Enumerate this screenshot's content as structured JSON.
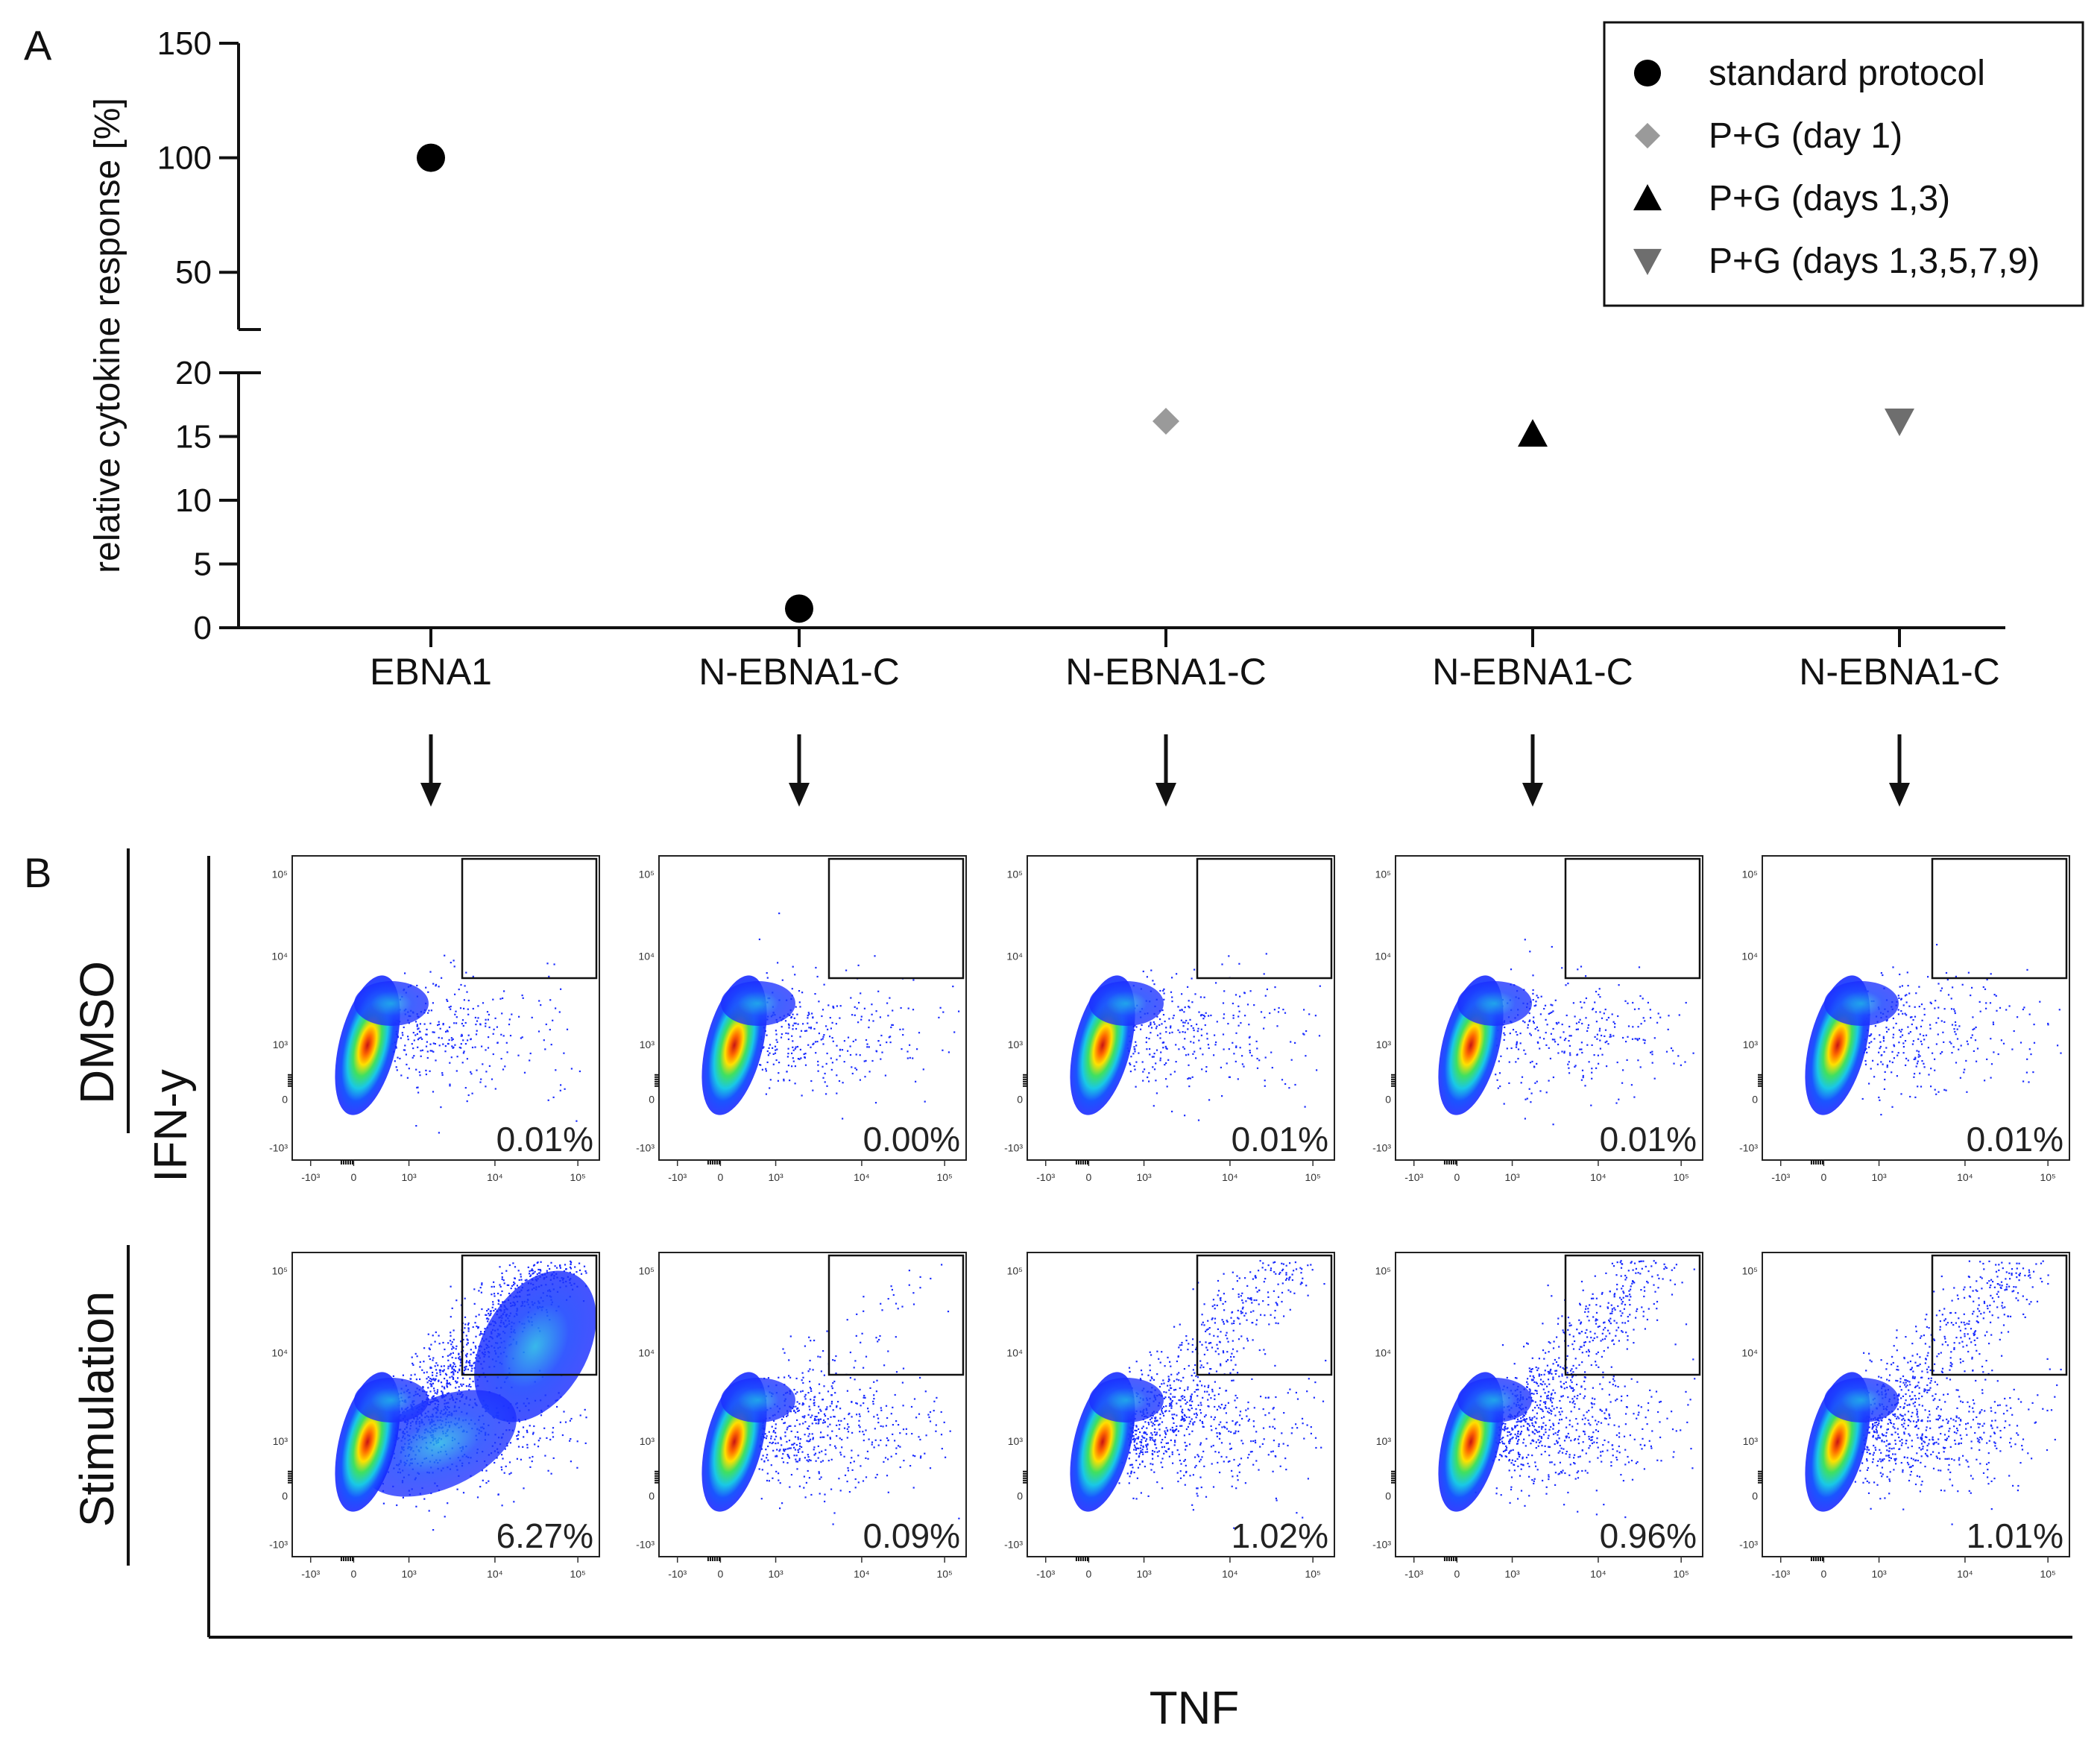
{
  "panel_a_label": "A",
  "panel_b_label": "B",
  "chart_data": [
    {
      "type": "scatter",
      "panel": "A",
      "ylabel": "relative cytokine response [%]",
      "xlabel": "",
      "axis_break": [
        20,
        25
      ],
      "ylim_lower": [
        0,
        20
      ],
      "ylim_upper": [
        25,
        150
      ],
      "yticks_lower": [
        0,
        5,
        10,
        15,
        20
      ],
      "yticks_upper": [
        50,
        100,
        150
      ],
      "categories": [
        "EBNA1",
        "N-EBNA1-C",
        "N-EBNA1-C",
        "N-EBNA1-C",
        "N-EBNA1-C"
      ],
      "series": [
        {
          "name": "standard protocol",
          "marker": "circle",
          "color": "#000000",
          "points": [
            {
              "category_index": 0,
              "value": 100
            },
            {
              "category_index": 1,
              "value": 1.5
            }
          ]
        },
        {
          "name": "P+G (day 1)",
          "marker": "diamond",
          "color": "#9a9a9a",
          "points": [
            {
              "category_index": 2,
              "value": 16.2
            }
          ]
        },
        {
          "name": "P+G (days 1,3)",
          "marker": "triangle-up",
          "color": "#000000",
          "points": [
            {
              "category_index": 3,
              "value": 15.2
            }
          ]
        },
        {
          "name": "P+G (days 1,3,5,7,9)",
          "marker": "triangle-down",
          "color": "#6e6e6e",
          "points": [
            {
              "category_index": 4,
              "value": 16.2
            }
          ]
        }
      ],
      "legend_position": "top-right"
    },
    {
      "type": "scatter",
      "panel": "B",
      "description_kind": "flow cytometry density plots",
      "xlabel": "TNF",
      "ylabel": "IFN-y",
      "row_labels": [
        "DMSO",
        "Stimulation"
      ],
      "axis_ticks": [
        "-10³",
        "0",
        "10³",
        "10⁴",
        "10⁵"
      ],
      "gate_percentages": {
        "DMSO": [
          "0.01%",
          "0.00%",
          "0.01%",
          "0.01%",
          "0.01%"
        ],
        "Stimulation": [
          "6.27%",
          "0.09%",
          "1.02%",
          "0.96%",
          "1.01%"
        ]
      }
    }
  ]
}
